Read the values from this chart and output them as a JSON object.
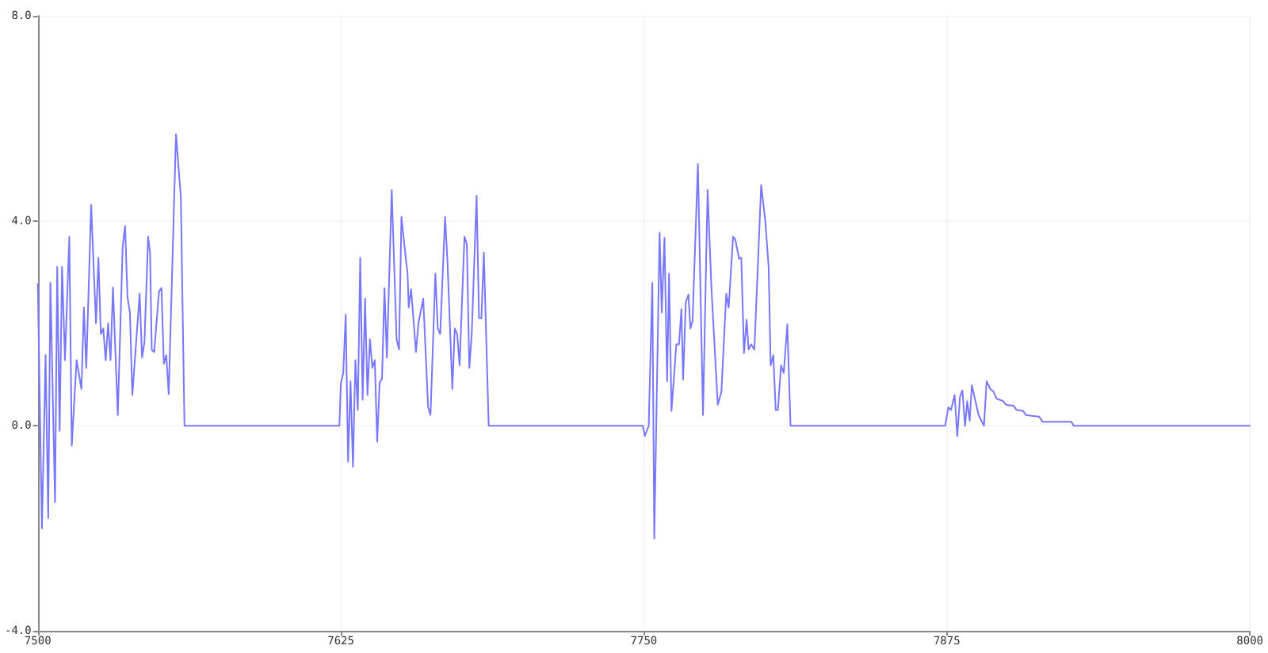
{
  "chart_data": {
    "type": "line",
    "x": [
      7500,
      7501.7,
      7503.2,
      7504.3,
      7505.2,
      7507.1,
      7508,
      7509,
      7510,
      7511.2,
      7513,
      7514,
      7516,
      7518,
      7519,
      7520,
      7522,
      7524,
      7525,
      7526,
      7527,
      7528,
      7529,
      7530,
      7531,
      7533,
      7535,
      7536,
      7537,
      7538,
      7539,
      7542,
      7543,
      7544,
      7545.5,
      7546.3,
      7547,
      7548,
      7550,
      7551,
      7552,
      7553,
      7554,
      7557,
      7559,
      7560.5,
      7624.4,
      7625,
      7626,
      7627,
      7628,
      7629,
      7630,
      7631,
      7632,
      7633,
      7634,
      7635,
      7636,
      7637,
      7638,
      7639,
      7640,
      7641,
      7642,
      7643,
      7644,
      7646,
      7648,
      7649,
      7650,
      7652,
      7652.5,
      7653,
      7654,
      7656,
      7657,
      7659,
      7661,
      7662,
      7664,
      7665,
      7666,
      7668,
      7669,
      7671,
      7672,
      7673,
      7674,
      7676,
      7677,
      7678,
      7679,
      7681,
      7682,
      7683,
      7684,
      7686,
      7749.6,
      7750.4,
      7752,
      7753.5,
      7754.3,
      7756.5,
      7757.4,
      7758.5,
      7759.6,
      7760.4,
      7761.4,
      7763.4,
      7764.5,
      7765.5,
      7766.2,
      7767.3,
      7768.4,
      7769.2,
      7770.1,
      7772.3,
      7774.4,
      7776.3,
      7777.9,
      7780.5,
      7782,
      7784,
      7785,
      7786.8,
      7787.7,
      7789.3,
      7790.2,
      7791.3,
      7792.4,
      7793.2,
      7794.3,
      7795.6,
      7798.4,
      7800.1,
      7801.5,
      7802.3,
      7803.4,
      7804.4,
      7805.3,
      7806.6,
      7807.7,
      7809.2,
      7810.5,
      7874.3,
      7875.6,
      7876.7,
      7878.2,
      7879.3,
      7880.4,
      7881.4,
      7882.5,
      7883.4,
      7884.4,
      7885.3,
      7888.1,
      7890.3,
      7891.4,
      7892.9,
      7894.2,
      7895.5,
      7898.3,
      7899.4,
      7902.6,
      7903.7,
      7906.5,
      7907.6,
      7913,
      7914.5,
      7926.3,
      7927.4,
      8000
    ],
    "series": [
      {
        "color": "#7777ff",
        "values": [
          2.77,
          -2.0,
          1.38,
          -1.8,
          2.79,
          -1.49,
          3.1,
          -0.1,
          3.1,
          1.28,
          3.69,
          -0.39,
          1.28,
          0.72,
          2.31,
          1.13,
          4.31,
          2.0,
          3.28,
          1.79,
          1.9,
          1.28,
          2.0,
          1.28,
          2.7,
          0.21,
          3.49,
          3.9,
          2.51,
          2.21,
          0.6,
          2.58,
          1.33,
          1.64,
          3.69,
          3.38,
          1.49,
          1.44,
          2.62,
          2.69,
          1.21,
          1.38,
          0.62,
          5.69,
          4.46,
          0,
          0,
          0.82,
          1.03,
          2.17,
          -0.7,
          0.87,
          -0.8,
          1.28,
          0.31,
          3.28,
          0.51,
          2.48,
          0.6,
          1.69,
          1.13,
          1.28,
          -0.31,
          0.84,
          0.92,
          2.69,
          1.33,
          4.6,
          1.69,
          1.49,
          4.08,
          3.18,
          3.0,
          2.31,
          2.67,
          1.44,
          2.0,
          2.48,
          0.36,
          0.21,
          2.97,
          1.9,
          1.79,
          4.08,
          3.2,
          0.72,
          1.9,
          1.79,
          1.18,
          3.69,
          3.54,
          1.13,
          1.79,
          4.49,
          2.1,
          2.1,
          3.38,
          0,
          0,
          -0.2,
          0,
          2.79,
          -2.2,
          3.77,
          2.21,
          3.67,
          0.87,
          2.97,
          0.29,
          1.59,
          1.59,
          2.28,
          0.9,
          2.41,
          2.56,
          1.9,
          2.05,
          5.11,
          0.21,
          4.6,
          2.67,
          0.41,
          0.67,
          2.58,
          2.31,
          3.69,
          3.64,
          3.26,
          3.28,
          1.42,
          2.07,
          1.49,
          1.59,
          1.49,
          4.7,
          4.0,
          3.08,
          1.18,
          1.38,
          0.31,
          0.31,
          1.18,
          1.03,
          1.98,
          0,
          0,
          0.36,
          0.31,
          0.6,
          -0.2,
          0.56,
          0.69,
          0,
          0.48,
          0.1,
          0.79,
          0.21,
          0,
          0.87,
          0.72,
          0.67,
          0.53,
          0.48,
          0.41,
          0.39,
          0.31,
          0.29,
          0.21,
          0.18,
          0.08,
          0.08,
          0,
          0
        ]
      }
    ],
    "xlim": [
      7500,
      8000
    ],
    "xticks": [
      7500,
      7625,
      7750,
      7875,
      8000
    ],
    "ylim": [
      -4,
      8
    ],
    "yticks": [
      {
        "value": -4,
        "label": "-4.0"
      },
      {
        "value": 0,
        "label": "0.0"
      },
      {
        "value": 4,
        "label": "4.0"
      },
      {
        "value": 8,
        "label": "8.0"
      }
    ],
    "grid": true,
    "marker": "none",
    "line_style": "solid"
  }
}
